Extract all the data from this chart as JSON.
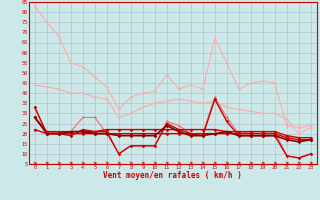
{
  "bg_color": "#cce8e8",
  "grid_color": "#b0b8d0",
  "xlabel": "Vent moyen/en rafales ( km/h )",
  "xlabel_color": "#cc0000",
  "tick_color": "#cc0000",
  "xlim": [
    -0.5,
    23.5
  ],
  "ylim": [
    5,
    85
  ],
  "yticks": [
    5,
    10,
    15,
    20,
    25,
    30,
    35,
    40,
    45,
    50,
    55,
    60,
    65,
    70,
    75,
    80,
    85
  ],
  "xticks": [
    0,
    1,
    2,
    3,
    4,
    5,
    6,
    7,
    8,
    9,
    10,
    11,
    12,
    13,
    14,
    15,
    16,
    17,
    18,
    19,
    20,
    21,
    22,
    23
  ],
  "series": [
    {
      "color": "#ffaaaa",
      "linewidth": 0.8,
      "markersize": 1.5,
      "data": [
        [
          0,
          83
        ],
        [
          1,
          75
        ],
        [
          2,
          68
        ],
        [
          3,
          55
        ],
        [
          4,
          53
        ],
        [
          5,
          48
        ],
        [
          6,
          43
        ],
        [
          7,
          32
        ],
        [
          8,
          38
        ],
        [
          9,
          40
        ],
        [
          10,
          41
        ],
        [
          11,
          49
        ],
        [
          12,
          42
        ],
        [
          13,
          44
        ],
        [
          14,
          42
        ],
        [
          15,
          67
        ],
        [
          16,
          55
        ],
        [
          17,
          42
        ],
        [
          18,
          45
        ],
        [
          19,
          46
        ],
        [
          20,
          45
        ],
        [
          21,
          24
        ],
        [
          22,
          23
        ],
        [
          23,
          24
        ]
      ]
    },
    {
      "color": "#ffaaaa",
      "linewidth": 0.8,
      "markersize": 1.5,
      "data": [
        [
          0,
          44
        ],
        [
          1,
          43
        ],
        [
          2,
          42
        ],
        [
          3,
          40
        ],
        [
          4,
          40
        ],
        [
          5,
          38
        ],
        [
          6,
          37
        ],
        [
          7,
          28
        ],
        [
          8,
          30
        ],
        [
          9,
          33
        ],
        [
          10,
          35
        ],
        [
          11,
          36
        ],
        [
          12,
          37
        ],
        [
          13,
          36
        ],
        [
          14,
          35
        ],
        [
          15,
          36
        ],
        [
          16,
          33
        ],
        [
          17,
          32
        ],
        [
          18,
          31
        ],
        [
          19,
          30
        ],
        [
          20,
          30
        ],
        [
          21,
          27
        ],
        [
          22,
          20
        ],
        [
          23,
          23
        ]
      ]
    },
    {
      "color": "#ff6666",
      "linewidth": 0.8,
      "markersize": 1.5,
      "data": [
        [
          0,
          33
        ],
        [
          1,
          20
        ],
        [
          2,
          21
        ],
        [
          3,
          21
        ],
        [
          4,
          28
        ],
        [
          5,
          28
        ],
        [
          6,
          20
        ],
        [
          7,
          10
        ],
        [
          8,
          14
        ],
        [
          9,
          14
        ],
        [
          10,
          14
        ],
        [
          11,
          26
        ],
        [
          12,
          24
        ],
        [
          13,
          20
        ],
        [
          14,
          20
        ],
        [
          15,
          38
        ],
        [
          16,
          28
        ],
        [
          17,
          20
        ],
        [
          18,
          21
        ],
        [
          19,
          21
        ],
        [
          20,
          21
        ],
        [
          21,
          9
        ],
        [
          22,
          8
        ],
        [
          23,
          10
        ]
      ]
    },
    {
      "color": "#cc0000",
      "linewidth": 1.0,
      "markersize": 1.8,
      "data": [
        [
          0,
          33
        ],
        [
          1,
          20
        ],
        [
          2,
          20
        ],
        [
          3,
          19
        ],
        [
          4,
          22
        ],
        [
          5,
          21
        ],
        [
          6,
          21
        ],
        [
          7,
          10
        ],
        [
          8,
          14
        ],
        [
          9,
          14
        ],
        [
          10,
          14
        ],
        [
          11,
          25
        ],
        [
          12,
          22
        ],
        [
          13,
          20
        ],
        [
          14,
          19
        ],
        [
          15,
          37
        ],
        [
          16,
          26
        ],
        [
          17,
          19
        ],
        [
          18,
          19
        ],
        [
          19,
          19
        ],
        [
          20,
          19
        ],
        [
          21,
          9
        ],
        [
          22,
          8
        ],
        [
          23,
          10
        ]
      ]
    },
    {
      "color": "#cc0000",
      "linewidth": 1.0,
      "markersize": 1.8,
      "data": [
        [
          0,
          28
        ],
        [
          1,
          21
        ],
        [
          2,
          21
        ],
        [
          3,
          21
        ],
        [
          4,
          21
        ],
        [
          5,
          21
        ],
        [
          6,
          22
        ],
        [
          7,
          22
        ],
        [
          8,
          22
        ],
        [
          9,
          22
        ],
        [
          10,
          22
        ],
        [
          11,
          22
        ],
        [
          12,
          22
        ],
        [
          13,
          22
        ],
        [
          14,
          22
        ],
        [
          15,
          22
        ],
        [
          16,
          21
        ],
        [
          17,
          21
        ],
        [
          18,
          21
        ],
        [
          19,
          21
        ],
        [
          20,
          21
        ],
        [
          21,
          19
        ],
        [
          22,
          18
        ],
        [
          23,
          18
        ]
      ]
    },
    {
      "color": "#cc0000",
      "linewidth": 1.0,
      "markersize": 1.8,
      "data": [
        [
          0,
          22
        ],
        [
          1,
          20
        ],
        [
          2,
          20
        ],
        [
          3,
          20
        ],
        [
          4,
          20
        ],
        [
          5,
          20
        ],
        [
          6,
          20
        ],
        [
          7,
          20
        ],
        [
          8,
          20
        ],
        [
          9,
          20
        ],
        [
          10,
          20
        ],
        [
          11,
          20
        ],
        [
          12,
          20
        ],
        [
          13,
          20
        ],
        [
          14,
          20
        ],
        [
          15,
          20
        ],
        [
          16,
          20
        ],
        [
          17,
          20
        ],
        [
          18,
          20
        ],
        [
          19,
          20
        ],
        [
          20,
          20
        ],
        [
          21,
          18
        ],
        [
          22,
          17
        ],
        [
          23,
          17
        ]
      ]
    },
    {
      "color": "#880000",
      "linewidth": 1.2,
      "markersize": 1.8,
      "data": [
        [
          0,
          28
        ],
        [
          1,
          20
        ],
        [
          2,
          20
        ],
        [
          3,
          21
        ],
        [
          4,
          21
        ],
        [
          5,
          20
        ],
        [
          6,
          20
        ],
        [
          7,
          19
        ],
        [
          8,
          19
        ],
        [
          9,
          19
        ],
        [
          10,
          19
        ],
        [
          11,
          24
        ],
        [
          12,
          21
        ],
        [
          13,
          19
        ],
        [
          14,
          19
        ],
        [
          15,
          20
        ],
        [
          16,
          21
        ],
        [
          17,
          19
        ],
        [
          18,
          19
        ],
        [
          19,
          19
        ],
        [
          20,
          19
        ],
        [
          21,
          17
        ],
        [
          22,
          16
        ],
        [
          23,
          17
        ]
      ]
    }
  ]
}
